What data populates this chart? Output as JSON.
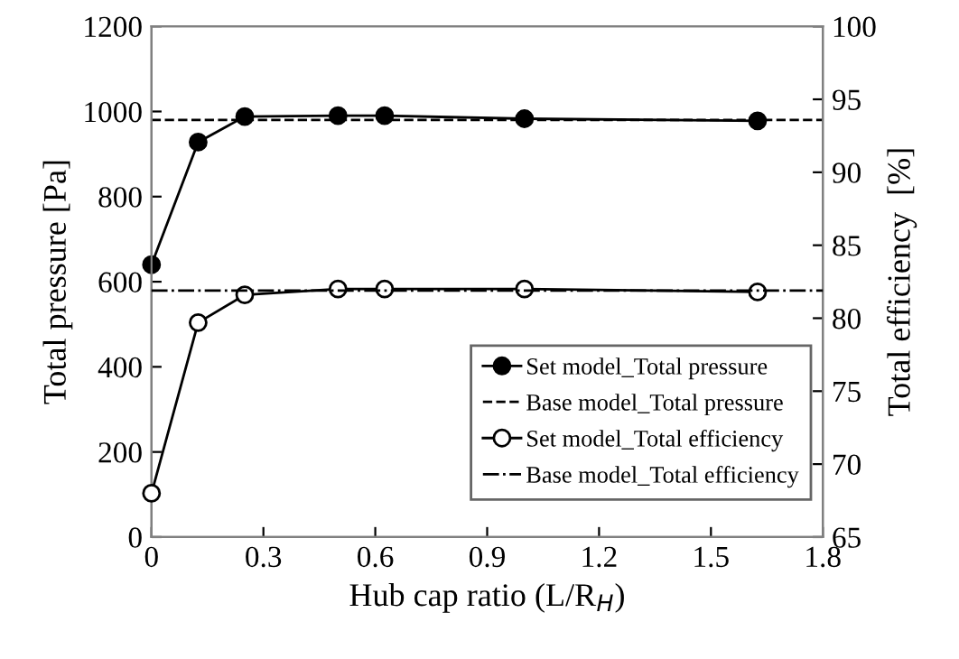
{
  "chart_data": {
    "type": "line",
    "xlabel": "Hub cap ratio (L/R$_{H}$)",
    "ylabel": "Total pressure [Pa]",
    "y2label": "Total efficiency  [%]",
    "xlim": [
      0,
      1.8
    ],
    "xticks": [
      0,
      0.3,
      0.6,
      0.9,
      1.2,
      1.5,
      1.8
    ],
    "ylim": [
      0,
      1200
    ],
    "yticks": [
      0,
      200,
      400,
      600,
      800,
      1000,
      1200
    ],
    "y2lim": [
      65,
      100
    ],
    "y2ticks": [
      65,
      70,
      75,
      80,
      85,
      90,
      95,
      100
    ],
    "grid": false,
    "legend": "bottom right",
    "series": [
      {
        "name": "Set model_Total pressure",
        "color": "#000000",
        "marker": "circle",
        "line_style": "solid",
        "x": [
          0,
          0.125,
          0.25,
          0.5,
          0.625,
          1.0,
          1.625
        ],
        "values": [
          640,
          928,
          988,
          990,
          990,
          983,
          978
        ]
      },
      {
        "name": "Base model_Total pressure",
        "color": "#000000",
        "marker": "none",
        "line_style": "dashed",
        "x": [
          0,
          1.8
        ],
        "values": [
          980,
          980
        ]
      },
      {
        "name": "Set model_Total efficiency",
        "color": "#000000",
        "marker": "circle",
        "line_style": "solid",
        "axis": "y2",
        "x": [
          0,
          0.125,
          0.25,
          0.5,
          0.625,
          1.0,
          1.625
        ],
        "values": [
          68.0,
          79.7,
          81.6,
          82.0,
          82.0,
          82.0,
          81.8
        ]
      },
      {
        "name": "Base model_Total efficiency",
        "color": "#000000",
        "marker": "none",
        "line_style": "dashdot",
        "axis": "y2",
        "x": [
          0,
          1.8
        ],
        "values": [
          81.9,
          81.9
        ]
      }
    ]
  }
}
